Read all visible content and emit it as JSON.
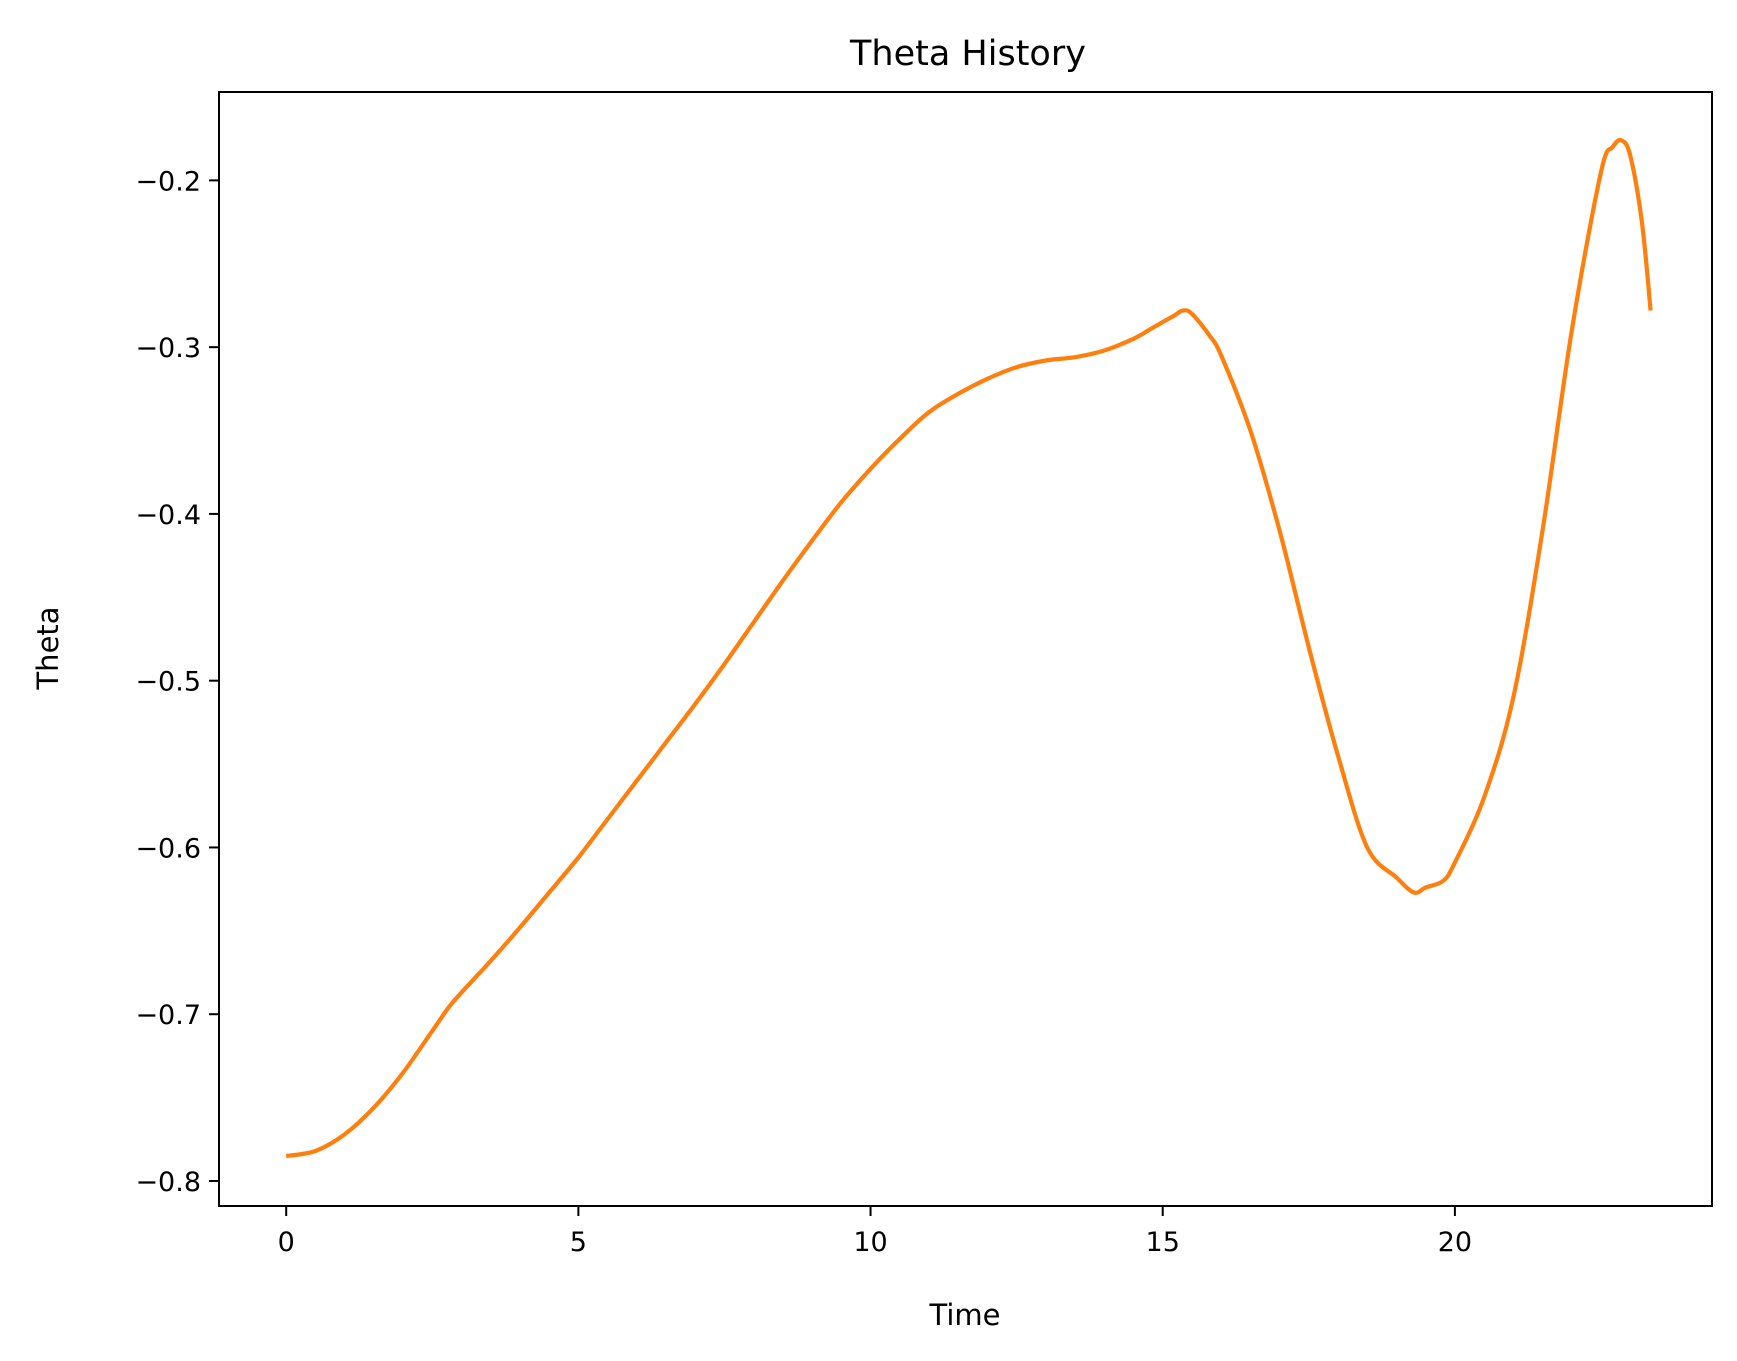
{
  "chart_data": {
    "type": "line",
    "title": "Theta History",
    "xlabel": "Time",
    "ylabel": "Theta",
    "xlim": [
      -1.15,
      24.4
    ],
    "ylim": [
      -0.815,
      -0.147
    ],
    "x_ticks": [
      0,
      5,
      10,
      15,
      20
    ],
    "x_tick_labels": [
      "0",
      "5",
      "10",
      "15",
      "20"
    ],
    "y_ticks": [
      -0.8,
      -0.7,
      -0.6,
      -0.5,
      -0.4,
      -0.3,
      -0.2
    ],
    "y_tick_labels": [
      "−0.8",
      "−0.7",
      "−0.6",
      "−0.5",
      "−0.4",
      "−0.3",
      "−0.2"
    ],
    "grid": false,
    "legend": "none",
    "series": [
      {
        "color": "#ff7f0e",
        "x": [
          0,
          0.5,
          1.0,
          1.5,
          2.0,
          2.5,
          2.8,
          3.0,
          3.5,
          4.0,
          4.5,
          5.0,
          5.5,
          6.0,
          6.5,
          7.0,
          7.5,
          8.0,
          8.5,
          9.0,
          9.5,
          10.0,
          10.5,
          11.0,
          11.5,
          12.0,
          12.5,
          13.0,
          13.5,
          14.0,
          14.5,
          14.8,
          15.0,
          15.2,
          15.35,
          15.5,
          15.8,
          16.0,
          16.5,
          17.0,
          17.5,
          18.0,
          18.5,
          19.0,
          19.3,
          19.5,
          19.8,
          20.0,
          20.5,
          21.0,
          21.5,
          22.0,
          22.5,
          22.7,
          22.85,
          23.0,
          23.2,
          23.35
        ],
        "y": [
          -0.785,
          -0.782,
          -0.772,
          -0.756,
          -0.735,
          -0.71,
          -0.695,
          -0.687,
          -0.668,
          -0.648,
          -0.627,
          -0.606,
          -0.583,
          -0.56,
          -0.537,
          -0.514,
          -0.49,
          -0.465,
          -0.44,
          -0.416,
          -0.393,
          -0.373,
          -0.355,
          -0.339,
          -0.328,
          -0.319,
          -0.312,
          -0.308,
          -0.306,
          -0.302,
          -0.295,
          -0.289,
          -0.285,
          -0.281,
          -0.278,
          -0.28,
          -0.293,
          -0.305,
          -0.35,
          -0.41,
          -0.48,
          -0.545,
          -0.6,
          -0.618,
          -0.627,
          -0.624,
          -0.62,
          -0.609,
          -0.57,
          -0.51,
          -0.41,
          -0.29,
          -0.195,
          -0.18,
          -0.176,
          -0.185,
          -0.225,
          -0.278
        ]
      }
    ]
  }
}
